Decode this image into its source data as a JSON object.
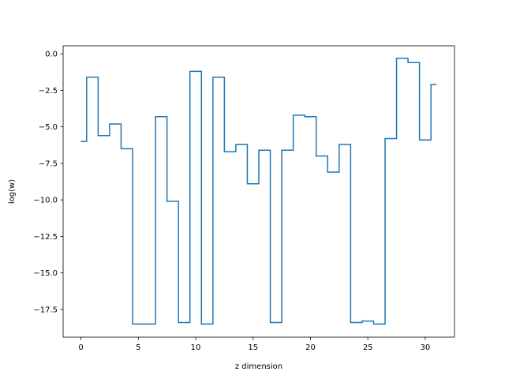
{
  "chart_data": {
    "type": "line",
    "drawstyle": "steps-mid",
    "xlabel": "z dimension",
    "ylabel": "log(w)",
    "xlim": [
      -1.55,
      32.55
    ],
    "ylim": [
      -19.4,
      0.55
    ],
    "grid": false,
    "legend": "none",
    "line_color": "#1f77b4",
    "x_ticks": [
      0,
      5,
      10,
      15,
      20,
      25,
      30
    ],
    "x_tick_labels": [
      "0",
      "5",
      "10",
      "15",
      "20",
      "25",
      "30"
    ],
    "y_ticks": [
      0,
      -2.5,
      -5,
      -7.5,
      -10,
      -12.5,
      -15,
      -17.5
    ],
    "y_tick_labels": [
      "0.0",
      "−2.5",
      "−5.0",
      "−7.5",
      "−10.0",
      "−12.5",
      "−15.0",
      "−17.5"
    ],
    "x": [
      0,
      1,
      2,
      3,
      4,
      5,
      6,
      7,
      8,
      9,
      10,
      11,
      12,
      13,
      14,
      15,
      16,
      17,
      18,
      19,
      20,
      21,
      22,
      23,
      24,
      25,
      26,
      27,
      28,
      29,
      30,
      31
    ],
    "values": [
      -6.0,
      -1.6,
      -5.6,
      -4.8,
      -6.5,
      -18.5,
      -18.5,
      -4.3,
      -10.1,
      -18.4,
      -1.2,
      -18.5,
      -1.6,
      -6.7,
      -6.2,
      -8.9,
      -6.6,
      -18.4,
      -6.6,
      -4.2,
      -4.3,
      -7.0,
      -8.1,
      -6.2,
      -18.4,
      -18.3,
      -18.5,
      -5.8,
      -0.3,
      -0.6,
      -5.9,
      -2.1
    ]
  }
}
